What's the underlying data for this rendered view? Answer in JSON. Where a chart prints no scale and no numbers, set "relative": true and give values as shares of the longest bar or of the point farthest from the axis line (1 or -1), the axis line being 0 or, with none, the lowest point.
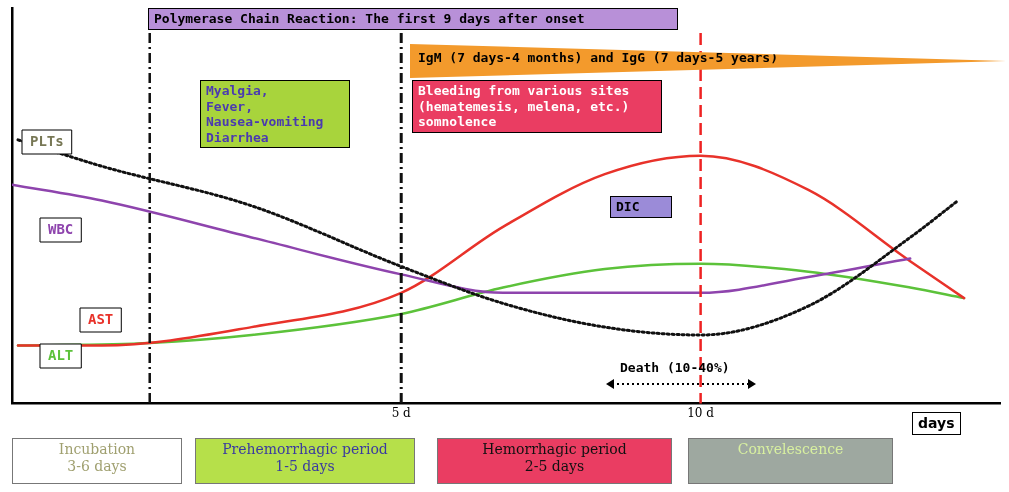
{
  "chart_data": {
    "type": "line",
    "relative": true,
    "xlabel": "days",
    "xlim": [
      -1.5,
      15
    ],
    "xticks": [
      {
        "value": 5,
        "label": "5 d"
      },
      {
        "value": 10,
        "label": "10 d"
      }
    ],
    "tick_labels": "x",
    "grid": false,
    "legend": false,
    "marker": "none",
    "series": [
      {
        "name": "PLTs",
        "color": "#111111",
        "line_style": "dotted",
        "x": [
          -1.4,
          0,
          2.5,
          5,
          6.7,
          8.4,
          10,
          11.8,
          13.5,
          14.3
        ],
        "values": [
          1,
          0.9,
          0.75,
          0.52,
          0.38,
          0.29,
          0.26,
          0.37,
          0.63,
          0.77
        ]
      },
      {
        "name": "WBC",
        "color": "#8e44ad",
        "line_style": "solid",
        "x": [
          -1.5,
          0,
          2.5,
          5,
          6.7,
          10,
          11.8,
          13.5
        ],
        "values": [
          0.83,
          0.77,
          0.63,
          0.49,
          0.42,
          0.42,
          0.48,
          0.55
        ]
      },
      {
        "name": "AST",
        "color": "#e8322a",
        "line_style": "solid",
        "x": [
          -1.4,
          0,
          2.5,
          5,
          6.7,
          8.4,
          10,
          11.8,
          13.5,
          14.4
        ],
        "values": [
          0.22,
          0.22,
          0.29,
          0.42,
          0.67,
          0.87,
          0.94,
          0.81,
          0.54,
          0.4
        ]
      },
      {
        "name": "ALT",
        "color": "#5cc23a",
        "line_style": "solid",
        "x": [
          -1.4,
          0.8,
          2.5,
          5,
          6.7,
          8.4,
          10,
          11.8,
          13.5,
          14.4
        ],
        "values": [
          0.22,
          0.23,
          0.26,
          0.34,
          0.44,
          0.51,
          0.53,
          0.5,
          0.44,
          0.4
        ]
      }
    ],
    "ref_lines": [
      {
        "axis": "x",
        "value": 0.8,
        "color": "#111111",
        "line_style": "dashdot"
      },
      {
        "axis": "x",
        "value": 5,
        "color": "#111111",
        "line_style": "dashdot"
      },
      {
        "axis": "x",
        "value": 10,
        "color": "#ee2222",
        "line_style": "dashed"
      }
    ],
    "annotations": [
      "Polymerase Chain Reaction: The first 9 days after onset",
      "IgM (7 days-4 months)  and IgG (7 days-5 years)",
      "Myalgia,\nFever,\nNausea-vomiting\nDiarrhea",
      "Bleeding from various sites\n(hematemesis, melena, etc.)\nsomnolence",
      "DIC",
      "Death (10-40%)",
      "Incubation\n3-6 days",
      "Prehemorrhagic period\n1-5 days",
      "Hemorrhagic period\n2-5 days",
      "Convelescence"
    ]
  }
}
